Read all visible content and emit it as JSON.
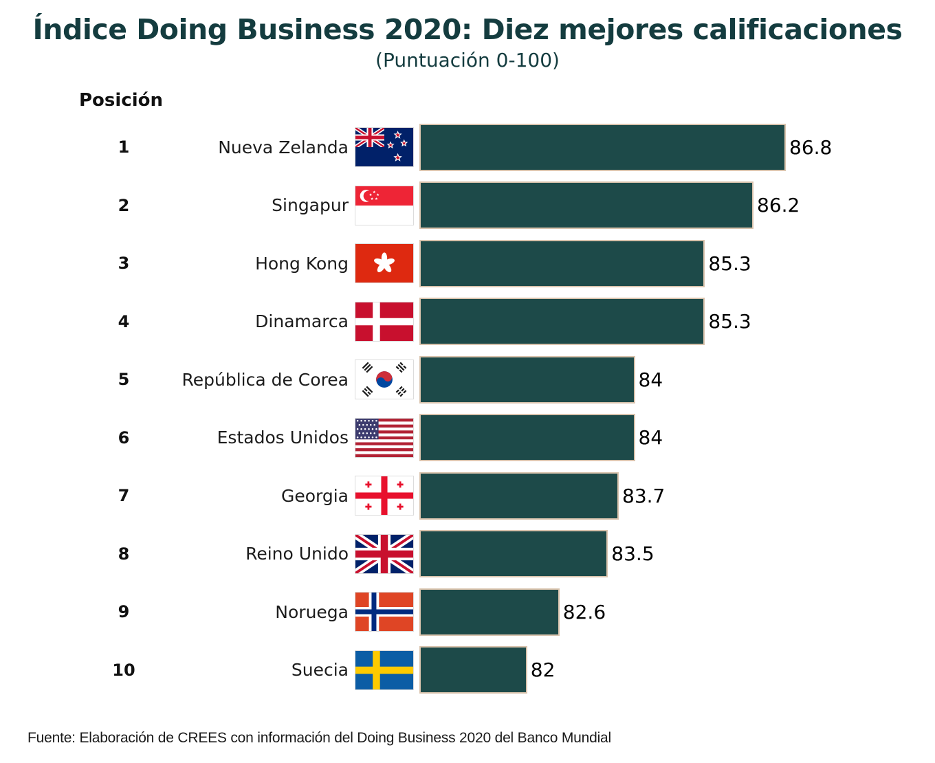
{
  "header": {
    "title": "Índice Doing Business 2020: Diez mejores calificaciones",
    "subtitle": "(Puntuación 0-100)",
    "position_label": "Posición"
  },
  "footer": {
    "source": "Fuente: Elaboración de CREES con información del Doing Business 2020 del Banco Mundial"
  },
  "colors": {
    "title": "#143c3f",
    "bar_fill": "#1d4a49",
    "bar_border": "#d9c3ad",
    "text": "#1c1c1c"
  },
  "chart_data": {
    "type": "bar",
    "orientation": "horizontal",
    "title": "Índice Doing Business 2020: Diez mejores calificaciones",
    "subtitle": "(Puntuación 0-100)",
    "xlabel": "",
    "ylabel": "Posición",
    "grid": false,
    "legend": false,
    "xlim": [
      80,
      87.5
    ],
    "ranks": [
      1,
      2,
      3,
      4,
      5,
      6,
      7,
      8,
      9,
      10
    ],
    "categories": [
      "Nueva Zelanda",
      "Singapur",
      "Hong Kong",
      "Dinamarca",
      "República de Corea",
      "Estados Unidos",
      "Georgia",
      "Reino Unido",
      "Noruega",
      "Suecia"
    ],
    "flags": [
      "nz",
      "sg",
      "hk",
      "dk",
      "kr",
      "us",
      "ge",
      "gb",
      "no",
      "se"
    ],
    "values": [
      86.8,
      86.2,
      85.3,
      85.3,
      84,
      84,
      83.7,
      83.5,
      82.6,
      82
    ],
    "value_labels": [
      "86.8",
      "86.2",
      "85.3",
      "85.3",
      "84",
      "84",
      "83.7",
      "83.5",
      "82.6",
      "82"
    ]
  }
}
